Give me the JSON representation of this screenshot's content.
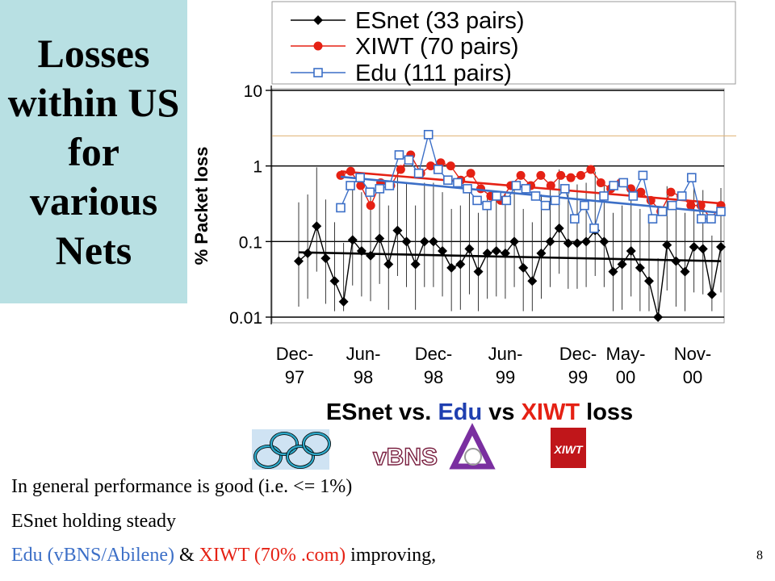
{
  "slide": {
    "title": "Losses within US for various Nets",
    "bullets": [
      {
        "parts": [
          {
            "text": "In general performance is good (i.e. <= 1%)",
            "color": "#000000"
          }
        ]
      },
      {
        "parts": [
          {
            "text": "ESnet holding steady",
            "color": "#000000"
          }
        ]
      },
      {
        "parts": [
          {
            "text": "Edu (vBNS/Abilene)",
            "color": "#3c6fc7"
          },
          {
            "text": " & ",
            "color": "#000000"
          },
          {
            "text": "XIWT (70% .com)",
            "color": "#e52114"
          },
          {
            "text": " improving,",
            "color": "#000000"
          }
        ]
      }
    ],
    "page_number": "8",
    "logos": [
      {
        "name": "rings-logo"
      },
      {
        "name": "vbns-logo",
        "text": "vBNS"
      },
      {
        "name": "abilene-logo"
      },
      {
        "name": "xiwt-logo",
        "text": "XIWT"
      }
    ]
  },
  "chart_data": {
    "type": "line",
    "caption_parts": [
      {
        "text": "ESnet vs. ",
        "color": "#000000"
      },
      {
        "text": "Edu",
        "color": "#1f3fb0"
      },
      {
        "text": " vs ",
        "color": "#000000"
      },
      {
        "text": "XIWT",
        "color": "#e52114"
      },
      {
        "text": " loss",
        "color": "#000000"
      }
    ],
    "ylabel": "% Packet loss",
    "yscale": "log",
    "ylim": [
      0.01,
      10
    ],
    "y_ticks": [
      "0.01",
      "0.1",
      "1",
      "10"
    ],
    "x_ticks": [
      [
        "Dec-",
        "97"
      ],
      [
        "Jun-",
        "98"
      ],
      [
        "Dec-",
        "98"
      ],
      [
        "Jun-",
        "99"
      ],
      [
        "Dec-",
        "99"
      ],
      [
        "May-",
        "00"
      ],
      [
        "Nov-",
        "00"
      ]
    ],
    "reference_line_y": 2.5,
    "series": [
      {
        "name": "ESnet (33 pairs)",
        "color": "#000000",
        "marker": "diamond",
        "values": [
          0.055,
          0.07,
          0.16,
          0.06,
          0.03,
          0.016,
          0.105,
          0.075,
          0.065,
          0.11,
          0.05,
          0.14,
          0.1,
          0.05,
          0.1,
          0.1,
          0.075,
          0.045,
          0.05,
          0.08,
          0.04,
          0.07,
          0.075,
          0.07,
          0.1,
          0.045,
          0.03,
          0.07,
          0.1,
          0.15,
          0.095,
          0.095,
          0.1,
          0.14,
          0.1,
          0.04,
          0.05,
          0.075,
          0.045,
          0.03,
          0.01,
          0.09,
          0.055,
          0.04,
          0.085,
          0.08,
          0.02,
          0.085
        ],
        "trend": [
          0.072,
          0.055
        ]
      },
      {
        "name": "XIWT (70 pairs)",
        "color": "#e52114",
        "marker": "circle",
        "values": [
          0.75,
          0.85,
          0.55,
          0.3,
          0.6,
          0.55,
          0.9,
          1.4,
          0.8,
          1.0,
          1.1,
          1.0,
          0.65,
          0.8,
          0.5,
          0.4,
          0.35,
          0.55,
          0.75,
          0.55,
          0.75,
          0.55,
          0.75,
          0.7,
          0.75,
          0.9,
          0.6,
          0.5,
          0.6,
          0.5,
          0.45,
          0.35,
          0.25,
          0.45,
          0.4,
          0.3,
          0.3,
          0.2,
          0.3
        ],
        "trend": [
          0.85,
          0.32
        ]
      },
      {
        "name": "Edu (111 pairs)",
        "color": "#3c6fc7",
        "marker": "square",
        "values": [
          0.28,
          0.55,
          0.7,
          0.45,
          0.5,
          0.55,
          1.4,
          1.2,
          0.8,
          2.6,
          0.9,
          0.65,
          0.6,
          0.5,
          0.35,
          0.3,
          0.4,
          0.35,
          0.55,
          0.5,
          0.4,
          0.3,
          0.35,
          0.5,
          0.2,
          0.3,
          0.15,
          0.4,
          0.55,
          0.6,
          0.4,
          0.75,
          0.2,
          0.25,
          0.3,
          0.4,
          0.7,
          0.2,
          0.2,
          0.25
        ],
        "trend": [
          0.72,
          0.24
        ]
      }
    ]
  }
}
